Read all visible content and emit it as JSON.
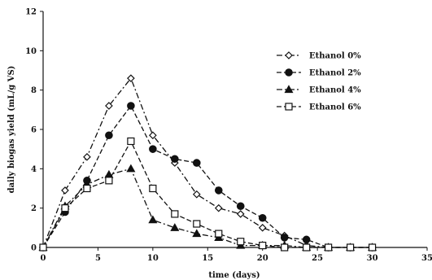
{
  "chart_data": {
    "type": "line",
    "title": "",
    "xlabel": "time (days)",
    "ylabel": "daily biogas yield (mL/g VS)",
    "xlim": [
      0,
      35
    ],
    "ylim": [
      0,
      12
    ],
    "xticks": [
      "0",
      "5",
      "10",
      "15",
      "20",
      "25",
      "30",
      "35"
    ],
    "yticks": [
      "0",
      "2",
      "4",
      "6",
      "8",
      "10",
      "12"
    ],
    "grid": false,
    "legend_position": "top-right",
    "series": [
      {
        "name": "Ethanol 0%",
        "marker": "diamond-open",
        "dash": "dash-dot",
        "x": [
          0,
          2,
          4,
          6,
          8,
          10,
          12,
          14,
          16,
          18,
          20,
          22,
          24,
          26,
          28,
          30
        ],
        "y": [
          0,
          2.9,
          4.6,
          7.2,
          8.6,
          5.7,
          4.3,
          2.7,
          2.0,
          1.7,
          1.0,
          0.6,
          0.1,
          0,
          0,
          0
        ]
      },
      {
        "name": "Ethanol 2%",
        "marker": "circle-filled",
        "dash": "dash",
        "x": [
          0,
          2,
          4,
          6,
          8,
          10,
          12,
          14,
          16,
          18,
          20,
          22,
          24,
          26,
          28,
          30
        ],
        "y": [
          0,
          1.8,
          3.4,
          5.7,
          7.2,
          5.0,
          4.5,
          4.3,
          2.9,
          2.1,
          1.5,
          0.5,
          0.4,
          0,
          0,
          0
        ]
      },
      {
        "name": "Ethanol 4%",
        "marker": "triangle-filled",
        "dash": "dash-dot",
        "x": [
          0,
          2,
          4,
          6,
          8,
          10,
          12,
          14,
          16,
          18,
          20,
          22,
          24,
          26,
          28,
          30
        ],
        "y": [
          0,
          2.1,
          3.2,
          3.7,
          4.0,
          1.4,
          1.0,
          0.7,
          0.5,
          0.1,
          0.1,
          0.1,
          0,
          0,
          0,
          0
        ]
      },
      {
        "name": "Ethanol 6%",
        "marker": "square-open",
        "dash": "dash",
        "x": [
          0,
          2,
          4,
          6,
          8,
          10,
          12,
          14,
          16,
          18,
          20,
          22,
          24,
          26,
          28,
          30
        ],
        "y": [
          0,
          2.0,
          3.0,
          3.4,
          5.4,
          3.0,
          1.7,
          1.2,
          0.7,
          0.3,
          0.1,
          0,
          0,
          0,
          0,
          0
        ]
      }
    ]
  }
}
